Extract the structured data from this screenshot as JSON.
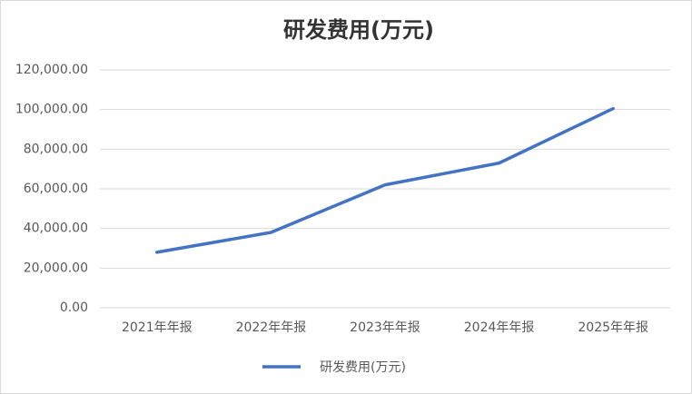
{
  "chart_data": {
    "type": "line",
    "title": "研发费用(万元)",
    "categories": [
      "2021年年报",
      "2022年年报",
      "2023年年报",
      "2024年年报",
      "2025年年报"
    ],
    "series": [
      {
        "name": "研发费用(万元)",
        "color": "#4472c4",
        "values": [
          28000,
          38000,
          62000,
          73000,
          100500
        ]
      }
    ],
    "ylim": [
      0,
      120000
    ],
    "yticks": [
      {
        "value": 0,
        "label": "0.00"
      },
      {
        "value": 20000,
        "label": "20,000.00"
      },
      {
        "value": 40000,
        "label": "40,000.00"
      },
      {
        "value": 60000,
        "label": "60,000.00"
      },
      {
        "value": 80000,
        "label": "80,000.00"
      },
      {
        "value": 100000,
        "label": "100,000.00"
      },
      {
        "value": 120000,
        "label": "120,000.00"
      }
    ],
    "grid": true,
    "legend": "bottom"
  }
}
